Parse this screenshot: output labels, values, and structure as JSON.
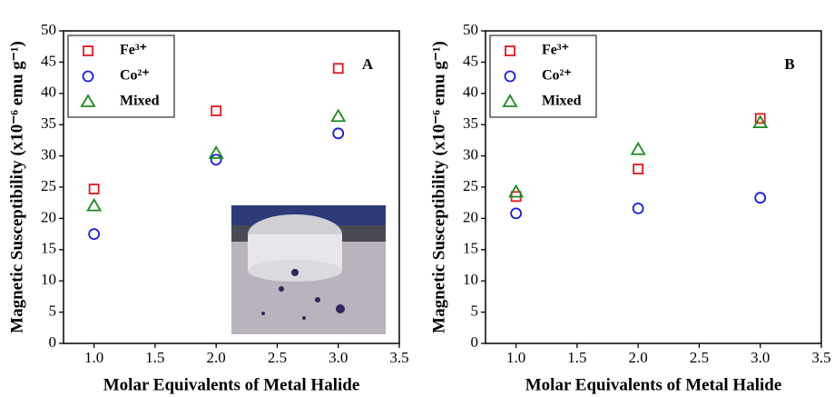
{
  "chart_data": [
    {
      "type": "scatter",
      "panel_label": "A",
      "xlabel": "Molar Equivalents of Metal Halide",
      "ylabel": "Magnetic Susceptibility (x10⁻⁶ emu g⁻¹)",
      "xlim": [
        0.75,
        3.5
      ],
      "ylim": [
        0,
        50
      ],
      "xticks": [
        {
          "value": 1,
          "label": "1.0"
        },
        {
          "value": 1.5,
          "label": "1.5"
        },
        {
          "value": 2,
          "label": "2.0"
        },
        {
          "value": 2.5,
          "label": "2.5"
        },
        {
          "value": 3,
          "label": "3.0"
        },
        {
          "value": 3.5,
          "label": "3.5"
        }
      ],
      "yticks": [
        0,
        5,
        10,
        15,
        20,
        25,
        30,
        35,
        40,
        45,
        50
      ],
      "legend": "upper left",
      "x": [
        1,
        2,
        3
      ],
      "series": [
        {
          "name": "Fe³⁺",
          "color": "#e8161b",
          "marker": "square",
          "values": [
            24.7,
            37.2,
            44.0
          ]
        },
        {
          "name": "Co²⁺",
          "color": "#1a1adb",
          "marker": "circle",
          "values": [
            17.5,
            29.4,
            33.6
          ]
        },
        {
          "name": "Mixed",
          "color": "#1c8a1c",
          "marker": "triangle",
          "values": [
            22.0,
            30.4,
            36.3
          ]
        }
      ]
    },
    {
      "type": "scatter",
      "panel_label": "B",
      "xlabel": "Molar Equivalents of Metal Halide",
      "ylabel": "Magnetic Susceptibility (x10⁻⁶ emu g⁻¹)",
      "xlim": [
        0.75,
        3.5
      ],
      "ylim": [
        0,
        50
      ],
      "xticks": [
        {
          "value": 1,
          "label": "1.0"
        },
        {
          "value": 1.5,
          "label": "1.5"
        },
        {
          "value": 2,
          "label": "2.0"
        },
        {
          "value": 2.5,
          "label": "2.5"
        },
        {
          "value": 3,
          "label": "3.0"
        },
        {
          "value": 3.5,
          "label": "3.5"
        }
      ],
      "yticks": [
        0,
        5,
        10,
        15,
        20,
        25,
        30,
        35,
        40,
        45,
        50
      ],
      "legend": "upper left",
      "x": [
        1,
        2,
        3
      ],
      "series": [
        {
          "name": "Fe³⁺",
          "color": "#e8161b",
          "marker": "square",
          "values": [
            23.5,
            27.9,
            36.0
          ]
        },
        {
          "name": "Co²⁺",
          "color": "#1a1adb",
          "marker": "circle",
          "values": [
            20.8,
            21.6,
            23.3
          ]
        },
        {
          "name": "Mixed",
          "color": "#1c8a1c",
          "marker": "triangle",
          "values": [
            24.2,
            31.0,
            35.3
          ]
        }
      ]
    }
  ]
}
